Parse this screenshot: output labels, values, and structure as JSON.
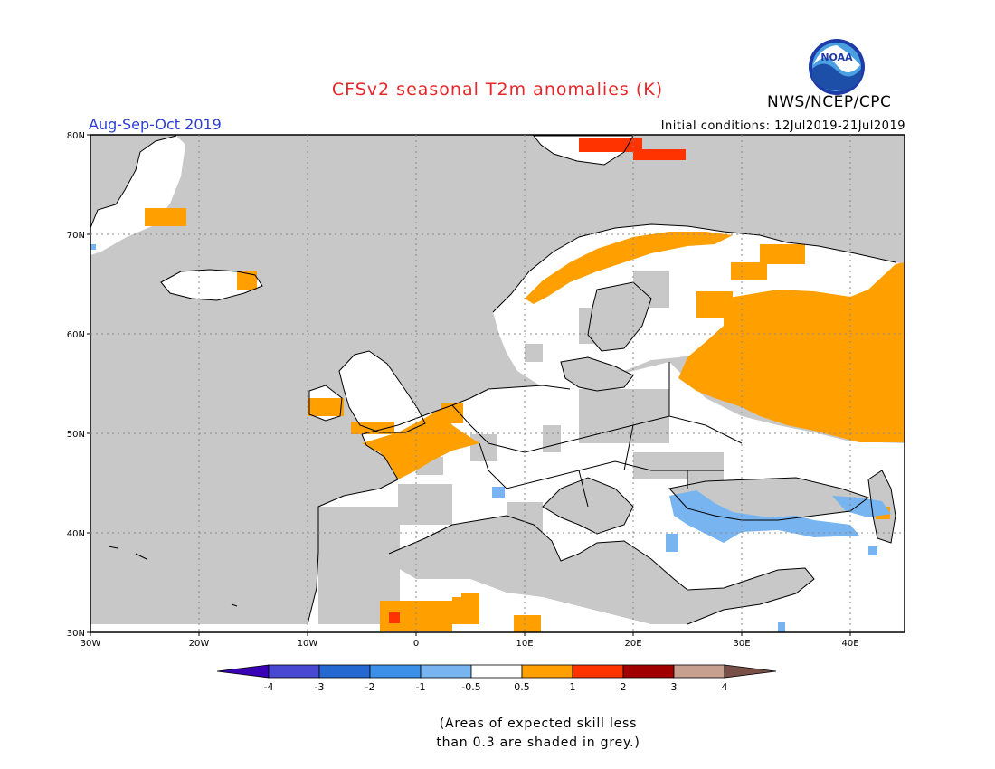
{
  "header": {
    "title": "CFSv2 seasonal T2m anomalies (K)",
    "agency": "NWS/NCEP/CPC",
    "period": "Aug-Sep-Oct 2019",
    "initial_conditions": "Initial conditions: 12Jul2019-21Jul2019",
    "logo_text": "NOAA"
  },
  "map": {
    "lat_ticks": [
      "80N",
      "70N",
      "60N",
      "50N",
      "40N",
      "30N"
    ],
    "lon_ticks": [
      "30W",
      "20W",
      "10W",
      "0",
      "10E",
      "20E",
      "30E",
      "40E"
    ],
    "lat_range": [
      30,
      80
    ],
    "lon_range": [
      -30,
      45
    ],
    "grid": "dotted",
    "colors": {
      "skill_mask_grey": "#c8c8c8",
      "neutral": "#ffffff",
      "warm_0_5_to_1": "#ffa000",
      "warm_1_to_2": "#ff3300",
      "cool_minus1_to_minus0_5": "#78b4f0"
    }
  },
  "legend": {
    "ticks": [
      "-4",
      "-3",
      "-2",
      "-1",
      "-0.5",
      "0.5",
      "1",
      "2",
      "3",
      "4"
    ],
    "colors": [
      "#3a00b4",
      "#4848d2",
      "#2468d2",
      "#3c90e8",
      "#78b4f0",
      "#ffffff",
      "#ffa000",
      "#ff3300",
      "#a00000",
      "#c8a090",
      "#785048"
    ]
  },
  "footnote": {
    "line1": "(Areas of expected skill less",
    "line2": "than 0.3 are shaded in grey.)"
  }
}
